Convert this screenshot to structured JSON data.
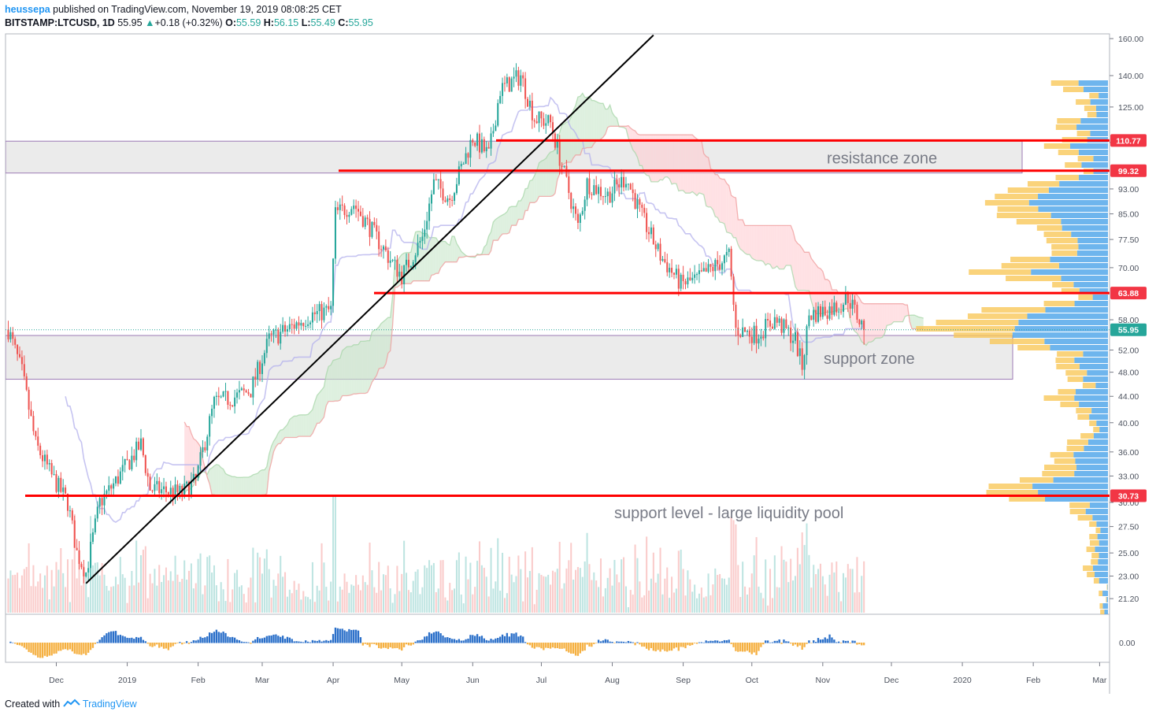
{
  "header": {
    "author": "heussepa",
    "published_text": "published on TradingView.com, November 19, 2019 08:08:25 CET",
    "symbol": "BITSTAMP:LTCUSD, 1D",
    "last": "55.95",
    "change": "+0.18 (+0.32%)",
    "o_label": "O:",
    "o_value": "55.59",
    "h_label": "H:",
    "h_value": "56.15",
    "l_label": "L:",
    "l_value": "55.49",
    "c_label": "C:",
    "c_value": "55.95"
  },
  "footer": {
    "created_with": "Created with",
    "brand": "TradingView",
    "logo_icon": "tradingview-logo-icon"
  },
  "colors": {
    "up": "#26a69a",
    "down": "#ef5350",
    "level_line": "#ff0000",
    "tag_bg": "#f23645",
    "tag_last_bg": "#26a69a",
    "zone_fill": "#e8e8e8",
    "zone_border": "#9c7bb5",
    "cloud_bull": "#c8e6c9",
    "cloud_bear": "#ffcdd2",
    "vp_up": "#4aa3e8",
    "vp_down": "#f9c85a",
    "osc_up": "#2a6fc9",
    "osc_down": "#f5b041"
  },
  "chart_data": {
    "type": "candlestick",
    "symbol": "BITSTAMP:LTCUSD",
    "interval": "1D",
    "price_scale": "log",
    "ylim": [
      20.5,
      162
    ],
    "x_ticks": [
      "Dec",
      "2019",
      "Feb",
      "Mar",
      "Apr",
      "May",
      "Jun",
      "Jul",
      "Aug",
      "Sep",
      "Oct",
      "Nov",
      "Dec",
      "2020",
      "Feb",
      "Mar"
    ],
    "y_ticks": [
      "160.00",
      "140.00",
      "125.00",
      "110.00",
      "93.00",
      "85.00",
      "77.50",
      "70.00",
      "58.00",
      "52.00",
      "48.00",
      "44.00",
      "40.00",
      "36.00",
      "33.00",
      "30.00",
      "27.50",
      "25.00",
      "23.00",
      "21.20"
    ],
    "oscillator_tick": "0.00",
    "price_tags": [
      {
        "label": "110.77",
        "value": 110.77
      },
      {
        "label": "99.32",
        "value": 99.32
      },
      {
        "label": "63.88",
        "value": 63.88
      },
      {
        "label": "55.95",
        "value": 55.95,
        "last": true
      },
      {
        "label": "30.73",
        "value": 30.73
      }
    ],
    "horizontal_levels": [
      110.77,
      99.32,
      63.88,
      30.73
    ],
    "zones": [
      {
        "label": "resistance zone",
        "top": 110.5,
        "bottom": 98.5
      },
      {
        "label": "support zone",
        "top": 54.8,
        "bottom": 46.8
      }
    ],
    "annotations": [
      {
        "label": "support level - large liquidity pool"
      }
    ],
    "trendline": {
      "from": {
        "date": "2018-12-14",
        "price": 22.4
      },
      "to": {
        "date": "2019-08-19",
        "price": 162
      }
    },
    "series_keypoints": [
      {
        "date": "2018-11-10",
        "close": 56
      },
      {
        "date": "2018-11-16",
        "close": 48
      },
      {
        "date": "2018-11-22",
        "close": 37
      },
      {
        "date": "2018-11-29",
        "close": 33
      },
      {
        "date": "2018-12-06",
        "close": 30
      },
      {
        "date": "2018-12-10",
        "close": 25
      },
      {
        "date": "2018-12-14",
        "close": 23.3
      },
      {
        "date": "2018-12-20",
        "close": 30
      },
      {
        "date": "2018-12-26",
        "close": 32
      },
      {
        "date": "2019-01-07",
        "close": 37
      },
      {
        "date": "2019-01-11",
        "close": 31.5
      },
      {
        "date": "2019-01-25",
        "close": 31
      },
      {
        "date": "2019-01-31",
        "close": 32.5
      },
      {
        "date": "2019-02-08",
        "close": 43
      },
      {
        "date": "2019-02-18",
        "close": 44
      },
      {
        "date": "2019-02-24",
        "close": 45
      },
      {
        "date": "2019-03-04",
        "close": 54
      },
      {
        "date": "2019-03-12",
        "close": 56
      },
      {
        "date": "2019-03-22",
        "close": 59
      },
      {
        "date": "2019-03-31",
        "close": 60
      },
      {
        "date": "2019-04-02",
        "close": 85
      },
      {
        "date": "2019-04-10",
        "close": 88
      },
      {
        "date": "2019-04-18",
        "close": 80
      },
      {
        "date": "2019-04-26",
        "close": 72
      },
      {
        "date": "2019-05-01",
        "close": 68
      },
      {
        "date": "2019-05-10",
        "close": 78
      },
      {
        "date": "2019-05-15",
        "close": 95
      },
      {
        "date": "2019-05-22",
        "close": 90
      },
      {
        "date": "2019-06-01",
        "close": 112
      },
      {
        "date": "2019-06-08",
        "close": 105
      },
      {
        "date": "2019-06-13",
        "close": 133
      },
      {
        "date": "2019-06-22",
        "close": 140
      },
      {
        "date": "2019-06-28",
        "close": 120
      },
      {
        "date": "2019-07-05",
        "close": 118
      },
      {
        "date": "2019-07-12",
        "close": 95
      },
      {
        "date": "2019-07-17",
        "close": 81
      },
      {
        "date": "2019-07-21",
        "close": 95
      },
      {
        "date": "2019-07-30",
        "close": 91
      },
      {
        "date": "2019-08-07",
        "close": 97
      },
      {
        "date": "2019-08-14",
        "close": 84
      },
      {
        "date": "2019-08-22",
        "close": 73
      },
      {
        "date": "2019-08-31",
        "close": 66
      },
      {
        "date": "2019-09-07",
        "close": 67
      },
      {
        "date": "2019-09-14",
        "close": 70
      },
      {
        "date": "2019-09-21",
        "close": 73
      },
      {
        "date": "2019-09-24",
        "close": 56
      },
      {
        "date": "2019-10-03",
        "close": 55
      },
      {
        "date": "2019-10-11",
        "close": 58
      },
      {
        "date": "2019-10-20",
        "close": 54
      },
      {
        "date": "2019-10-23",
        "close": 49
      },
      {
        "date": "2019-10-26",
        "close": 59
      },
      {
        "date": "2019-11-02",
        "close": 60
      },
      {
        "date": "2019-11-08",
        "close": 61
      },
      {
        "date": "2019-11-12",
        "close": 63
      },
      {
        "date": "2019-11-19",
        "close": 55.95
      }
    ]
  }
}
